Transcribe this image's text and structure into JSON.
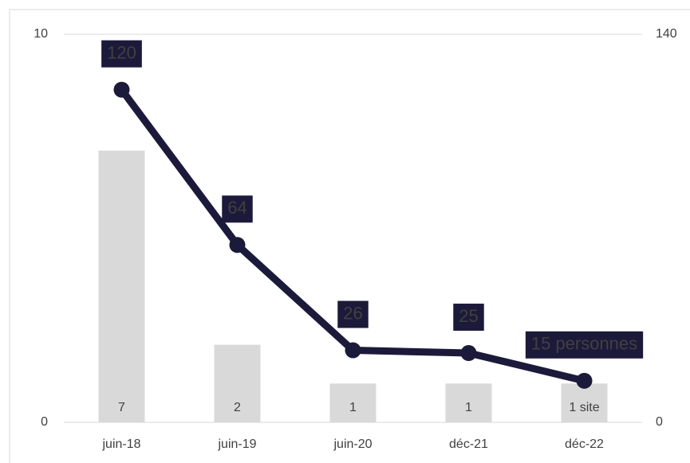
{
  "chart_data": {
    "type": "combo",
    "categories": [
      "juin-18",
      "juin-19",
      "juin-20",
      "déc-21",
      "déc-22"
    ],
    "series": [
      {
        "type": "bar",
        "color": "#d9d9d9",
        "axis": "y",
        "values": [
          7,
          2,
          1,
          1,
          1
        ],
        "value_labels": [
          "7",
          "2",
          "1",
          "1",
          "1 site"
        ]
      },
      {
        "type": "line",
        "color": "#1c1a3a",
        "axis": "y2",
        "values": [
          120,
          64,
          26,
          25,
          15
        ],
        "value_labels": [
          "120",
          "64",
          "26",
          "25",
          "15 personnes"
        ]
      }
    ],
    "ylim": [
      0,
      10
    ],
    "yticks": [
      0,
      10
    ],
    "y2lim": [
      0,
      140
    ],
    "y2ticks": [
      0,
      140
    ],
    "grid": true
  }
}
